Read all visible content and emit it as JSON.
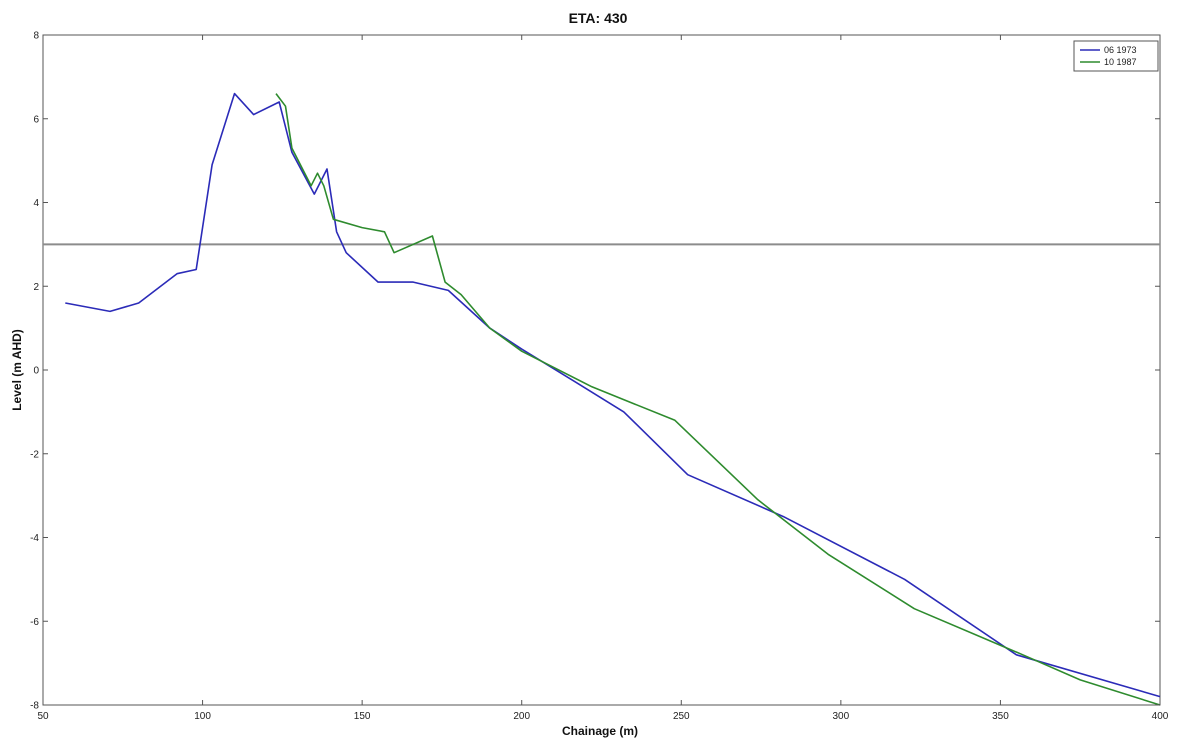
{
  "chart_data": {
    "type": "line",
    "title": "ETA:  430",
    "xlabel": "Chainage (m)",
    "ylabel": "Level (m AHD)",
    "xlim": [
      50,
      400
    ],
    "ylim": [
      -8,
      8
    ],
    "xticks": [
      50,
      100,
      150,
      200,
      250,
      300,
      350,
      400
    ],
    "yticks": [
      -8,
      -6,
      -4,
      -2,
      0,
      2,
      4,
      6,
      8
    ],
    "grid": false,
    "legend_position": "top-right",
    "reference_line": {
      "y": 3,
      "color": "#8c8c8c"
    },
    "series": [
      {
        "name": "06 1973",
        "color": "#2b2bb8",
        "points": [
          [
            57,
            1.6
          ],
          [
            71,
            1.4
          ],
          [
            80,
            1.6
          ],
          [
            92,
            2.3
          ],
          [
            98,
            2.4
          ],
          [
            103,
            4.9
          ],
          [
            110,
            6.6
          ],
          [
            116,
            6.1
          ],
          [
            124,
            6.4
          ],
          [
            128,
            5.2
          ],
          [
            135,
            4.2
          ],
          [
            139,
            4.8
          ],
          [
            142,
            3.3
          ],
          [
            145,
            2.8
          ],
          [
            155,
            2.1
          ],
          [
            166,
            2.1
          ],
          [
            177,
            1.9
          ],
          [
            190,
            1.0
          ],
          [
            200,
            0.5
          ],
          [
            215,
            -0.2
          ],
          [
            232,
            -1.0
          ],
          [
            252,
            -2.5
          ],
          [
            282,
            -3.5
          ],
          [
            320,
            -5.0
          ],
          [
            355,
            -6.8
          ],
          [
            400,
            -7.8
          ]
        ]
      },
      {
        "name": "10 1987",
        "color": "#2e8b2e",
        "points": [
          [
            123,
            6.6
          ],
          [
            126,
            6.3
          ],
          [
            128,
            5.3
          ],
          [
            134,
            4.4
          ],
          [
            136,
            4.7
          ],
          [
            138,
            4.4
          ],
          [
            141,
            3.6
          ],
          [
            150,
            3.4
          ],
          [
            157,
            3.3
          ],
          [
            160,
            2.8
          ],
          [
            172,
            3.2
          ],
          [
            176,
            2.1
          ],
          [
            181,
            1.8
          ],
          [
            190,
            1.0
          ],
          [
            200,
            0.45
          ],
          [
            222,
            -0.4
          ],
          [
            248,
            -1.2
          ],
          [
            274,
            -3.1
          ],
          [
            296,
            -4.4
          ],
          [
            323,
            -5.7
          ],
          [
            357,
            -6.8
          ],
          [
            375,
            -7.4
          ],
          [
            400,
            -8.0
          ]
        ]
      }
    ]
  }
}
